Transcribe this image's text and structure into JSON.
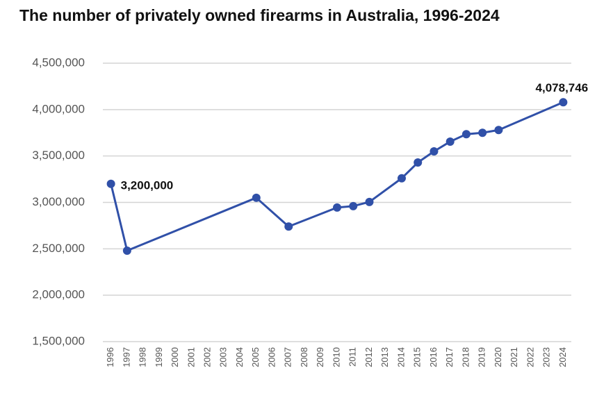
{
  "chart_data": {
    "type": "line",
    "title": "The number of privately owned firearms in Australia, 1996-2024",
    "x": [
      1996,
      1997,
      2005,
      2007,
      2010,
      2011,
      2012,
      2014,
      2015,
      2016,
      2017,
      2018,
      2019,
      2020,
      2024
    ],
    "series": [
      {
        "name": "Privately owned firearms",
        "color": "#3050a8",
        "values": [
          3200000,
          2480000,
          3050000,
          2740000,
          2945000,
          2960000,
          3005000,
          3260000,
          3430000,
          3550000,
          3655000,
          3735000,
          3750000,
          3780000,
          4078746
        ],
        "value_labels": [
          "3,200,000",
          null,
          null,
          null,
          null,
          null,
          null,
          null,
          null,
          null,
          null,
          null,
          null,
          null,
          "4,078,746"
        ]
      }
    ],
    "xlim": [
      1995.5,
      2024.5
    ],
    "xticks": [
      1996,
      1997,
      1998,
      1999,
      2000,
      2001,
      2002,
      2003,
      2004,
      2005,
      2006,
      2007,
      2008,
      2009,
      2010,
      2011,
      2012,
      2013,
      2014,
      2015,
      2016,
      2017,
      2018,
      2019,
      2020,
      2021,
      2022,
      2023,
      2024
    ],
    "ylim": [
      1500000,
      4500000
    ],
    "yticks": [
      {
        "value": 1500000,
        "label": "1,500,000"
      },
      {
        "value": 2000000,
        "label": "2,000,000"
      },
      {
        "value": 2500000,
        "label": "2,500,000"
      },
      {
        "value": 3000000,
        "label": "3,000,000"
      },
      {
        "value": 3500000,
        "label": "3,500,000"
      },
      {
        "value": 4000000,
        "label": "4,000,000"
      },
      {
        "value": 4500000,
        "label": "4,500,000"
      }
    ],
    "grid": true
  }
}
